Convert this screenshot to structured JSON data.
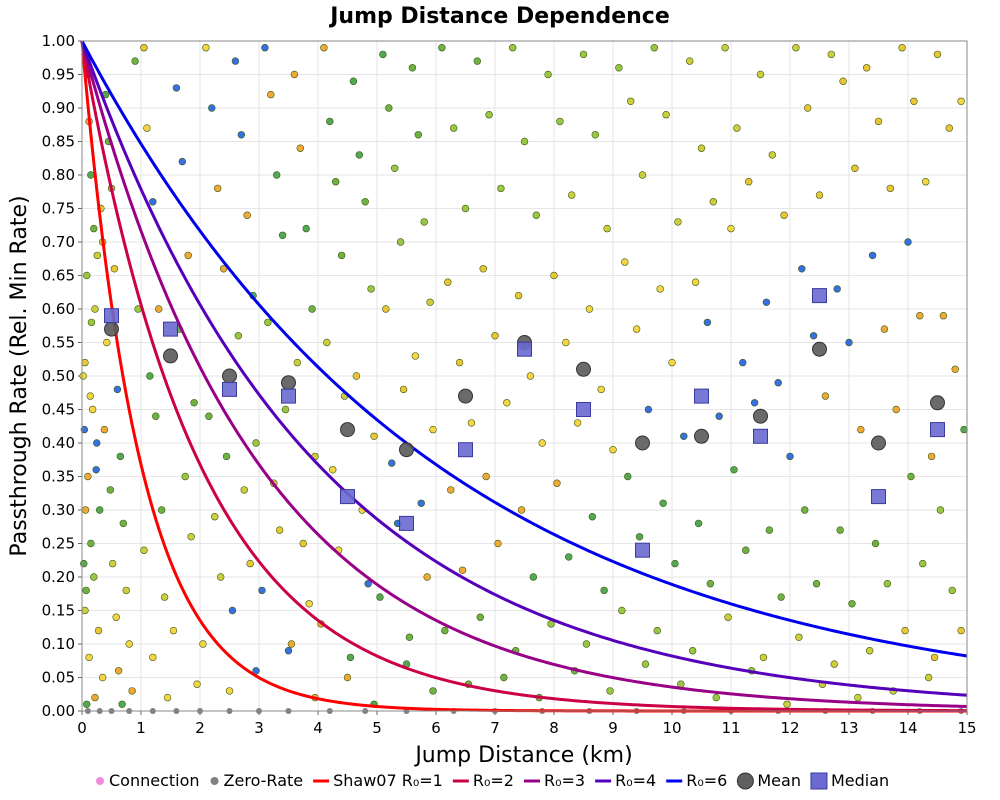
{
  "chart_data": {
    "type": "scatter",
    "title": "Jump Distance Dependence",
    "xlabel": "Jump Distance (km)",
    "ylabel": "Passthrough Rate (Rel. Min Rate)",
    "xlim": [
      0,
      15
    ],
    "ylim": [
      0,
      1
    ],
    "x_ticks": [
      "0",
      "1",
      "2",
      "3",
      "4",
      "5",
      "6",
      "7",
      "8",
      "9",
      "10",
      "11",
      "12",
      "13",
      "14",
      "15"
    ],
    "y_ticks": [
      "0.00",
      "0.05",
      "0.10",
      "0.15",
      "0.20",
      "0.25",
      "0.30",
      "0.35",
      "0.40",
      "0.45",
      "0.50",
      "0.55",
      "0.60",
      "0.65",
      "0.70",
      "0.75",
      "0.80",
      "0.85",
      "0.90",
      "0.95",
      "1.00"
    ],
    "grid": true,
    "legend_position": "bottom",
    "legend": [
      {
        "label": "Connection",
        "kind": "dot",
        "color": "#f08ce0"
      },
      {
        "label": "Zero-Rate",
        "kind": "dot",
        "color": "#808080"
      },
      {
        "label": "Shaw07 R₀=1",
        "kind": "line",
        "color": "#ff0000"
      },
      {
        "label": "R₀=2",
        "kind": "line",
        "color": "#cc0044"
      },
      {
        "label": "R₀=3",
        "kind": "line",
        "color": "#990088"
      },
      {
        "label": "R₀=4",
        "kind": "line",
        "color": "#5500bb"
      },
      {
        "label": "R₀=6",
        "kind": "line",
        "color": "#0000ee"
      },
      {
        "label": "Mean",
        "kind": "circle",
        "color": "#606060"
      },
      {
        "label": "Median",
        "kind": "square",
        "color": "#6a6ad0"
      }
    ],
    "curves": [
      {
        "name": "Shaw07 R₀=1",
        "r0": 1,
        "color": "#ff0000"
      },
      {
        "name": "R₀=2",
        "r0": 2,
        "color": "#cc0044"
      },
      {
        "name": "R₀=3",
        "r0": 3,
        "color": "#990088"
      },
      {
        "name": "R₀=4",
        "r0": 4,
        "color": "#5500bb"
      },
      {
        "name": "R₀=6",
        "r0": 6,
        "color": "#0000ee"
      }
    ],
    "mean": {
      "x": [
        0.5,
        1.5,
        2.5,
        3.5,
        4.5,
        5.5,
        6.5,
        7.5,
        8.5,
        9.5,
        10.5,
        11.5,
        12.5,
        13.5,
        14.5
      ],
      "y": [
        0.57,
        0.53,
        0.5,
        0.49,
        0.42,
        0.39,
        0.47,
        0.55,
        0.51,
        0.4,
        0.41,
        0.44,
        0.54,
        0.4,
        0.46
      ]
    },
    "median": {
      "x": [
        0.5,
        1.5,
        2.5,
        3.5,
        4.5,
        5.5,
        6.5,
        7.5,
        8.5,
        9.5,
        10.5,
        11.5,
        12.5,
        13.5,
        14.5
      ],
      "y": [
        0.59,
        0.57,
        0.48,
        0.47,
        0.32,
        0.28,
        0.39,
        0.54,
        0.45,
        0.24,
        0.47,
        0.41,
        0.62,
        0.32,
        0.42
      ]
    },
    "connection_colors": [
      "#f5d030",
      "#e8c020",
      "#c8c828",
      "#90c030",
      "#60a830",
      "#40a040",
      "#f0a020",
      "#2060e0"
    ],
    "connections": [
      [
        0.05,
        0.98
      ],
      [
        0.1,
        0.95
      ],
      [
        0.12,
        0.88
      ],
      [
        0.15,
        0.8
      ],
      [
        0.2,
        0.72
      ],
      [
        0.08,
        0.65
      ],
      [
        0.22,
        0.6
      ],
      [
        0.05,
        0.52
      ],
      [
        0.18,
        0.45
      ],
      [
        0.25,
        0.4
      ],
      [
        0.1,
        0.35
      ],
      [
        0.3,
        0.3
      ],
      [
        0.15,
        0.25
      ],
      [
        0.2,
        0.2
      ],
      [
        0.05,
        0.15
      ],
      [
        0.28,
        0.12
      ],
      [
        0.12,
        0.08
      ],
      [
        0.35,
        0.05
      ],
      [
        0.22,
        0.02
      ],
      [
        0.08,
        0.01
      ],
      [
        0.4,
        0.92
      ],
      [
        0.45,
        0.85
      ],
      [
        0.5,
        0.78
      ],
      [
        0.35,
        0.7
      ],
      [
        0.55,
        0.66
      ],
      [
        0.42,
        0.55
      ],
      [
        0.6,
        0.48
      ],
      [
        0.38,
        0.42
      ],
      [
        0.65,
        0.38
      ],
      [
        0.48,
        0.33
      ],
      [
        0.7,
        0.28
      ],
      [
        0.52,
        0.22
      ],
      [
        0.75,
        0.18
      ],
      [
        0.58,
        0.14
      ],
      [
        0.8,
        0.1
      ],
      [
        0.62,
        0.06
      ],
      [
        0.85,
        0.03
      ],
      [
        0.68,
        0.01
      ],
      [
        0.9,
        0.97
      ],
      [
        0.95,
        0.6
      ],
      [
        0.02,
        0.5
      ],
      [
        0.04,
        0.42
      ],
      [
        0.06,
        0.3
      ],
      [
        0.03,
        0.22
      ],
      [
        0.07,
        0.18
      ],
      [
        0.16,
        0.58
      ],
      [
        0.26,
        0.68
      ],
      [
        0.32,
        0.75
      ],
      [
        0.14,
        0.47
      ],
      [
        0.24,
        0.36
      ],
      [
        1.05,
        0.99
      ],
      [
        1.1,
        0.87
      ],
      [
        1.2,
        0.76
      ],
      [
        1.3,
        0.6
      ],
      [
        1.15,
        0.5
      ],
      [
        1.25,
        0.44
      ],
      [
        1.35,
        0.3
      ],
      [
        1.05,
        0.24
      ],
      [
        1.4,
        0.17
      ],
      [
        1.2,
        0.08
      ],
      [
        1.45,
        0.02
      ],
      [
        1.6,
        0.93
      ],
      [
        1.7,
        0.82
      ],
      [
        1.8,
        0.68
      ],
      [
        1.65,
        0.57
      ],
      [
        1.9,
        0.46
      ],
      [
        1.75,
        0.35
      ],
      [
        1.85,
        0.26
      ],
      [
        1.55,
        0.12
      ],
      [
        1.95,
        0.04
      ],
      [
        2.1,
        0.99
      ],
      [
        2.2,
        0.9
      ],
      [
        2.3,
        0.78
      ],
      [
        2.4,
        0.66
      ],
      [
        2.15,
        0.44
      ],
      [
        2.45,
        0.38
      ],
      [
        2.25,
        0.29
      ],
      [
        2.35,
        0.2
      ],
      [
        2.05,
        0.1
      ],
      [
        2.5,
        0.03
      ],
      [
        2.6,
        0.97
      ],
      [
        2.7,
        0.86
      ],
      [
        2.8,
        0.74
      ],
      [
        2.9,
        0.62
      ],
      [
        2.65,
        0.56
      ],
      [
        2.95,
        0.4
      ],
      [
        2.75,
        0.33
      ],
      [
        2.85,
        0.22
      ],
      [
        2.55,
        0.15
      ],
      [
        2.95,
        0.06
      ],
      [
        3.1,
        0.99
      ],
      [
        3.2,
        0.92
      ],
      [
        3.3,
        0.8
      ],
      [
        3.4,
        0.71
      ],
      [
        3.15,
        0.58
      ],
      [
        3.45,
        0.45
      ],
      [
        3.25,
        0.34
      ],
      [
        3.35,
        0.27
      ],
      [
        3.05,
        0.18
      ],
      [
        3.5,
        0.09
      ],
      [
        3.6,
        0.95
      ],
      [
        3.7,
        0.84
      ],
      [
        3.8,
        0.72
      ],
      [
        3.9,
        0.6
      ],
      [
        3.65,
        0.52
      ],
      [
        3.95,
        0.38
      ],
      [
        3.75,
        0.25
      ],
      [
        3.85,
        0.16
      ],
      [
        3.55,
        0.1
      ],
      [
        3.95,
        0.02
      ],
      [
        4.1,
        0.99
      ],
      [
        4.2,
        0.88
      ],
      [
        4.3,
        0.79
      ],
      [
        4.4,
        0.68
      ],
      [
        4.15,
        0.55
      ],
      [
        4.45,
        0.47
      ],
      [
        4.25,
        0.36
      ],
      [
        4.35,
        0.24
      ],
      [
        4.05,
        0.13
      ],
      [
        4.5,
        0.05
      ],
      [
        4.6,
        0.94
      ],
      [
        4.7,
        0.83
      ],
      [
        4.8,
        0.76
      ],
      [
        4.9,
        0.63
      ],
      [
        4.65,
        0.5
      ],
      [
        4.95,
        0.41
      ],
      [
        4.75,
        0.3
      ],
      [
        4.85,
        0.19
      ],
      [
        4.55,
        0.08
      ],
      [
        4.95,
        0.01
      ],
      [
        5.1,
        0.98
      ],
      [
        5.2,
        0.9
      ],
      [
        5.3,
        0.81
      ],
      [
        5.4,
        0.7
      ],
      [
        5.15,
        0.6
      ],
      [
        5.45,
        0.48
      ],
      [
        5.25,
        0.37
      ],
      [
        5.35,
        0.28
      ],
      [
        5.05,
        0.17
      ],
      [
        5.5,
        0.07
      ],
      [
        5.6,
        0.96
      ],
      [
        5.7,
        0.86
      ],
      [
        5.8,
        0.73
      ],
      [
        5.9,
        0.61
      ],
      [
        5.65,
        0.53
      ],
      [
        5.95,
        0.42
      ],
      [
        5.75,
        0.31
      ],
      [
        5.85,
        0.2
      ],
      [
        5.55,
        0.11
      ],
      [
        5.95,
        0.03
      ],
      [
        6.1,
        0.99
      ],
      [
        6.3,
        0.87
      ],
      [
        6.5,
        0.75
      ],
      [
        6.2,
        0.64
      ],
      [
        6.4,
        0.52
      ],
      [
        6.6,
        0.43
      ],
      [
        6.25,
        0.33
      ],
      [
        6.45,
        0.21
      ],
      [
        6.15,
        0.12
      ],
      [
        6.55,
        0.04
      ],
      [
        6.7,
        0.97
      ],
      [
        6.9,
        0.89
      ],
      [
        7.1,
        0.78
      ],
      [
        6.8,
        0.66
      ],
      [
        7.0,
        0.56
      ],
      [
        7.2,
        0.46
      ],
      [
        6.85,
        0.35
      ],
      [
        7.05,
        0.25
      ],
      [
        6.75,
        0.14
      ],
      [
        7.15,
        0.05
      ],
      [
        7.3,
        0.99
      ],
      [
        7.5,
        0.85
      ],
      [
        7.7,
        0.74
      ],
      [
        7.4,
        0.62
      ],
      [
        7.6,
        0.5
      ],
      [
        7.8,
        0.4
      ],
      [
        7.45,
        0.3
      ],
      [
        7.65,
        0.2
      ],
      [
        7.35,
        0.09
      ],
      [
        7.75,
        0.02
      ],
      [
        7.9,
        0.95
      ],
      [
        8.1,
        0.88
      ],
      [
        8.3,
        0.77
      ],
      [
        8.0,
        0.65
      ],
      [
        8.2,
        0.55
      ],
      [
        8.4,
        0.43
      ],
      [
        8.05,
        0.34
      ],
      [
        8.25,
        0.23
      ],
      [
        7.95,
        0.13
      ],
      [
        8.35,
        0.06
      ],
      [
        8.5,
        0.98
      ],
      [
        8.7,
        0.86
      ],
      [
        8.9,
        0.72
      ],
      [
        8.6,
        0.6
      ],
      [
        8.8,
        0.48
      ],
      [
        9.0,
        0.39
      ],
      [
        8.65,
        0.29
      ],
      [
        8.85,
        0.18
      ],
      [
        8.55,
        0.1
      ],
      [
        8.95,
        0.03
      ],
      [
        9.1,
        0.96
      ],
      [
        9.3,
        0.91
      ],
      [
        9.5,
        0.8
      ],
      [
        9.2,
        0.67
      ],
      [
        9.4,
        0.57
      ],
      [
        9.6,
        0.45
      ],
      [
        9.25,
        0.35
      ],
      [
        9.45,
        0.26
      ],
      [
        9.15,
        0.15
      ],
      [
        9.55,
        0.07
      ],
      [
        9.7,
        0.99
      ],
      [
        9.9,
        0.89
      ],
      [
        10.1,
        0.73
      ],
      [
        9.8,
        0.63
      ],
      [
        10.0,
        0.52
      ],
      [
        10.2,
        0.41
      ],
      [
        9.85,
        0.31
      ],
      [
        10.05,
        0.22
      ],
      [
        9.75,
        0.12
      ],
      [
        10.15,
        0.04
      ],
      [
        10.3,
        0.97
      ],
      [
        10.5,
        0.84
      ],
      [
        10.7,
        0.76
      ],
      [
        10.4,
        0.64
      ],
      [
        10.6,
        0.58
      ],
      [
        10.8,
        0.44
      ],
      [
        10.45,
        0.28
      ],
      [
        10.65,
        0.19
      ],
      [
        10.35,
        0.09
      ],
      [
        10.75,
        0.02
      ],
      [
        10.9,
        0.99
      ],
      [
        11.1,
        0.87
      ],
      [
        11.3,
        0.79
      ],
      [
        11.0,
        0.72
      ],
      [
        11.2,
        0.52
      ],
      [
        11.4,
        0.46
      ],
      [
        11.05,
        0.36
      ],
      [
        11.25,
        0.24
      ],
      [
        10.95,
        0.14
      ],
      [
        11.35,
        0.06
      ],
      [
        11.5,
        0.95
      ],
      [
        11.7,
        0.83
      ],
      [
        11.9,
        0.74
      ],
      [
        11.6,
        0.61
      ],
      [
        11.8,
        0.49
      ],
      [
        12.0,
        0.38
      ],
      [
        11.65,
        0.27
      ],
      [
        11.85,
        0.17
      ],
      [
        11.55,
        0.08
      ],
      [
        11.95,
        0.01
      ],
      [
        12.1,
        0.99
      ],
      [
        12.3,
        0.9
      ],
      [
        12.5,
        0.77
      ],
      [
        12.2,
        0.66
      ],
      [
        12.4,
        0.56
      ],
      [
        12.6,
        0.47
      ],
      [
        12.25,
        0.3
      ],
      [
        12.45,
        0.19
      ],
      [
        12.15,
        0.11
      ],
      [
        12.55,
        0.04
      ],
      [
        12.7,
        0.98
      ],
      [
        12.9,
        0.94
      ],
      [
        13.1,
        0.81
      ],
      [
        12.8,
        0.63
      ],
      [
        13.0,
        0.55
      ],
      [
        13.2,
        0.42
      ],
      [
        12.85,
        0.27
      ],
      [
        13.05,
        0.16
      ],
      [
        12.75,
        0.07
      ],
      [
        13.15,
        0.02
      ],
      [
        13.3,
        0.96
      ],
      [
        13.5,
        0.88
      ],
      [
        13.7,
        0.78
      ],
      [
        13.4,
        0.68
      ],
      [
        13.6,
        0.57
      ],
      [
        13.8,
        0.45
      ],
      [
        13.45,
        0.25
      ],
      [
        13.65,
        0.19
      ],
      [
        13.35,
        0.09
      ],
      [
        13.75,
        0.03
      ],
      [
        13.9,
        0.99
      ],
      [
        14.1,
        0.91
      ],
      [
        14.3,
        0.79
      ],
      [
        14.0,
        0.7
      ],
      [
        14.2,
        0.59
      ],
      [
        14.4,
        0.38
      ],
      [
        14.05,
        0.35
      ],
      [
        14.25,
        0.22
      ],
      [
        13.95,
        0.12
      ],
      [
        14.35,
        0.05
      ],
      [
        14.5,
        0.98
      ],
      [
        14.7,
        0.87
      ],
      [
        14.9,
        0.91
      ],
      [
        14.6,
        0.59
      ],
      [
        14.8,
        0.51
      ],
      [
        14.95,
        0.42
      ],
      [
        14.55,
        0.3
      ],
      [
        14.75,
        0.18
      ],
      [
        14.45,
        0.08
      ],
      [
        14.9,
        0.12
      ]
    ],
    "zero_rate_x": [
      0.1,
      0.3,
      0.5,
      0.8,
      1.2,
      1.6,
      2.0,
      2.5,
      3.0,
      3.5,
      4.2,
      4.8,
      5.5,
      6.3,
      7.0,
      7.8,
      8.6,
      9.4,
      10.2,
      11.0,
      11.8,
      12.6,
      13.4,
      14.2,
      14.9
    ]
  }
}
